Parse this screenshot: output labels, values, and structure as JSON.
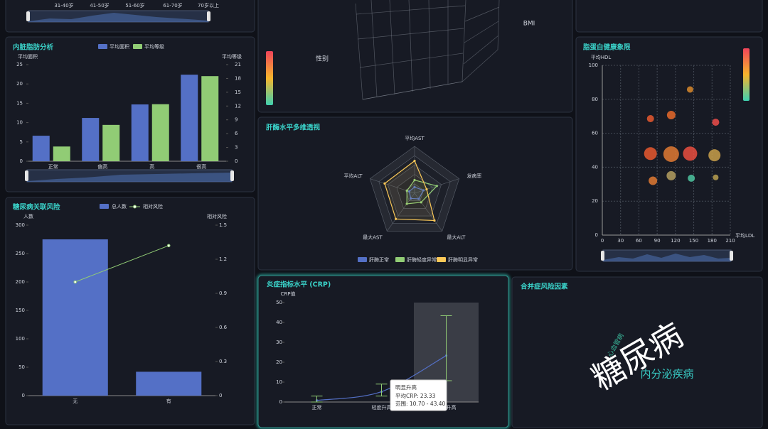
{
  "chart_data": [
    {
      "type": "datazoom",
      "labels": [
        "31-40岁",
        "41-50岁",
        "51-60岁",
        "61-70岁",
        "70岁以上"
      ]
    },
    {
      "type": "scatter3d",
      "xlabel": "性别",
      "zlabel": "BMI"
    },
    {
      "type": "bar",
      "title": "内脏脂肪分析",
      "categories": [
        "正常",
        "偏高",
        "高",
        "很高"
      ],
      "ylabel": "平均面积",
      "y2label": "平均等级",
      "ylim": [
        0,
        25
      ],
      "yticks": [
        0,
        5,
        10,
        15,
        20,
        25
      ],
      "y2lim": [
        0,
        21
      ],
      "y2ticks": [
        0,
        3,
        6,
        9,
        12,
        15,
        18,
        21
      ],
      "series": [
        {
          "name": "平均面积",
          "color": "#5470c6",
          "values": [
            6.6,
            11.2,
            14.7,
            22.4
          ]
        },
        {
          "name": "平均等级",
          "color": "#91cc75",
          "axis": "y2",
          "values": [
            3.2,
            7.9,
            12.4,
            18.5
          ]
        }
      ]
    },
    {
      "type": "bar_line",
      "title": "糖尿病关联风险",
      "categories": [
        "无",
        "有"
      ],
      "ylabel": "人数",
      "y2label": "相对风险",
      "ylim": [
        0,
        300
      ],
      "yticks": [
        0,
        50,
        100,
        150,
        200,
        250,
        300
      ],
      "y2lim": [
        0,
        1.5
      ],
      "y2ticks": [
        0,
        0.3,
        0.6,
        0.9,
        1.2,
        1.5
      ],
      "series": [
        {
          "name": "总人数",
          "color": "#5470c6",
          "values": [
            275,
            42
          ]
        },
        {
          "name": "相对风险",
          "color": "#91cc75",
          "axis": "y2",
          "values": [
            1.0,
            1.32
          ]
        }
      ]
    },
    {
      "type": "radar",
      "title": "肝酶水平多维透视",
      "indicators": [
        "平均AST",
        "发病率",
        "最大ALT",
        "最大AST",
        "平均ALT"
      ],
      "rlim": [
        0,
        100
      ],
      "series": [
        {
          "name": "肝酶正常",
          "color": "#5470c6",
          "values": [
            13,
            20,
            15,
            14,
            12
          ]
        },
        {
          "name": "肝酶轻度异常",
          "color": "#91cc75",
          "values": [
            28,
            50,
            24,
            28,
            17
          ]
        },
        {
          "name": "肝酶明显异常",
          "color": "#fac858",
          "values": [
            69,
            27,
            72,
            68,
            67
          ]
        }
      ]
    },
    {
      "type": "errorbar",
      "title": "炎症指标水平 (CRP)",
      "ylabel": "CRP值",
      "categories": [
        "正常",
        "轻度升高",
        "明显升高"
      ],
      "values": [
        0.8,
        5.2,
        23.33
      ],
      "low": [
        0,
        3,
        10.7
      ],
      "high": [
        3,
        9,
        43.4
      ],
      "line_color": "#5470c6",
      "error_color": "#91cc75",
      "ylim": [
        0,
        50
      ],
      "yticks": [
        0,
        10,
        20,
        30,
        40,
        50
      ],
      "tooltip": {
        "title": "明显升高",
        "lines": [
          "平均CRP: 23.33",
          "范围: 10.70 - 43.40"
        ]
      }
    },
    {
      "type": "scatter",
      "title": "脂蛋白健康象限",
      "xlabel": "平均LDL",
      "ylabel": "平均HDL",
      "xlim": [
        0,
        210
      ],
      "xticks": [
        0,
        30,
        60,
        90,
        120,
        150,
        180,
        210
      ],
      "ylim": [
        0,
        100
      ],
      "yticks": [
        0,
        20,
        40,
        60,
        80,
        100
      ],
      "grid": true,
      "x": [
        79,
        113,
        144,
        186,
        79,
        113,
        144,
        184,
        83,
        113,
        146,
        186
      ],
      "values": [
        68.6,
        70.7,
        85.8,
        66.5,
        48,
        47.7,
        48,
        47,
        32,
        35,
        33.5,
        34
      ],
      "sizes": [
        10,
        12,
        9,
        10,
        18,
        22,
        20,
        17,
        12,
        13,
        10,
        8
      ],
      "colors": [
        "#e8592f",
        "#e86a2a",
        "#d98a2c",
        "#ef4e4a",
        "#e8592f",
        "#e07a32",
        "#ea4f3f",
        "#c9a04a",
        "#e07a32",
        "#b5a060",
        "#4dc6a0",
        "#b8a050"
      ]
    },
    {
      "type": "wordcloud",
      "title": "合并症风险因素",
      "words": [
        {
          "text": "糖尿病",
          "color": "#ffffff"
        },
        {
          "text": "内分泌疾病",
          "color": "#37c6c0"
        },
        {
          "text": "心血管病",
          "color": "#3ab89a"
        }
      ]
    }
  ]
}
